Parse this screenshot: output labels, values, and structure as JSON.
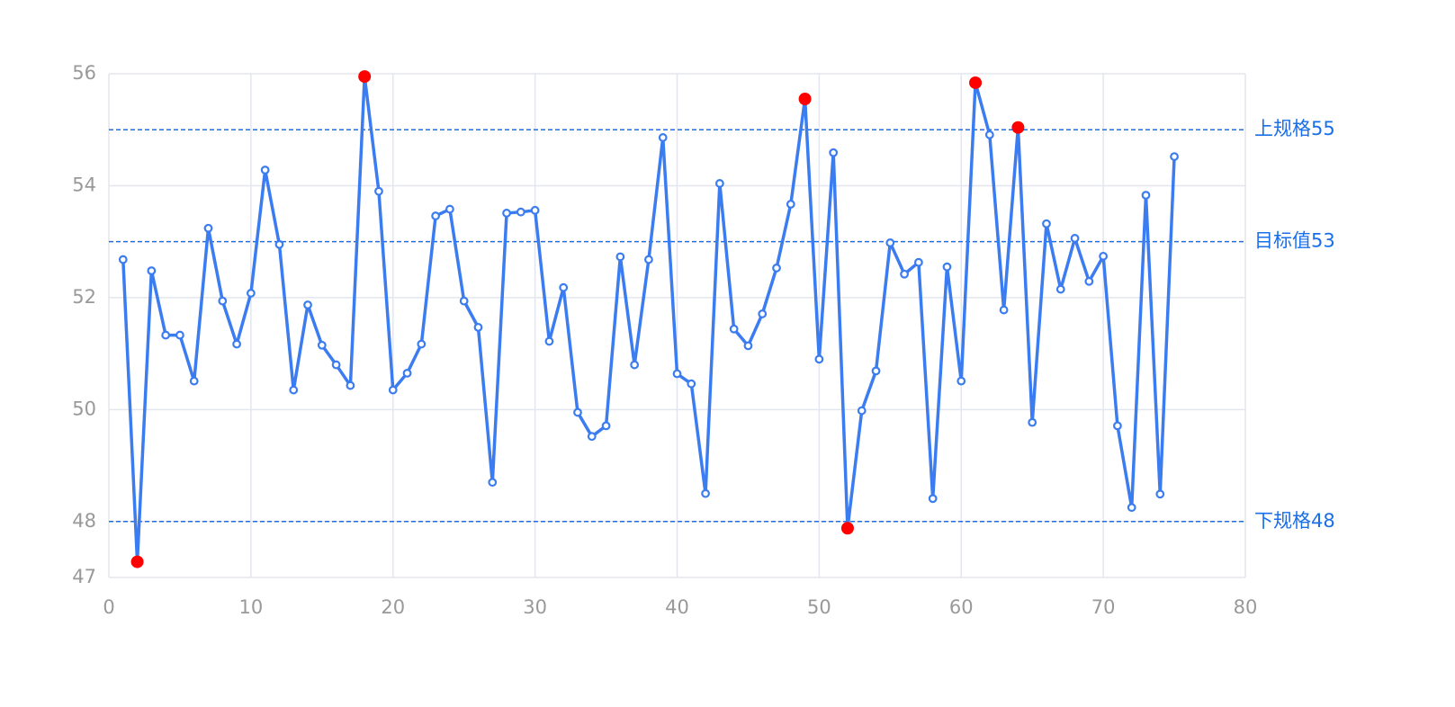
{
  "chart_data": {
    "type": "line",
    "x": [
      1,
      2,
      3,
      4,
      5,
      6,
      7,
      8,
      9,
      10,
      11,
      12,
      13,
      14,
      15,
      16,
      17,
      18,
      19,
      20,
      21,
      22,
      23,
      24,
      25,
      26,
      27,
      28,
      29,
      30,
      31,
      32,
      33,
      34,
      35,
      36,
      37,
      38,
      39,
      40,
      41,
      42,
      43,
      44,
      45,
      46,
      47,
      48,
      49,
      50,
      51,
      52,
      53,
      54,
      55,
      56,
      57,
      58,
      59,
      60,
      61,
      62,
      63,
      64,
      65,
      66,
      67,
      68,
      69,
      70,
      71,
      72,
      73,
      74,
      75
    ],
    "series": [
      {
        "color": "#3b7cf0",
        "values": [
          52.68,
          47.28,
          52.48,
          51.33,
          51.33,
          50.51,
          53.24,
          51.94,
          51.17,
          52.08,
          54.28,
          52.95,
          50.35,
          51.87,
          51.15,
          50.8,
          50.43,
          55.95,
          53.9,
          50.35,
          50.65,
          51.17,
          53.46,
          53.58,
          51.94,
          51.47,
          48.7,
          53.51,
          53.53,
          53.56,
          51.22,
          52.18,
          49.95,
          49.52,
          49.71,
          52.73,
          50.8,
          52.68,
          54.86,
          50.64,
          50.46,
          48.5,
          54.04,
          51.44,
          51.14,
          51.71,
          52.53,
          53.67,
          55.55,
          50.9,
          54.59,
          47.88,
          49.98,
          50.69,
          52.98,
          52.42,
          52.63,
          48.41,
          52.55,
          50.51,
          55.84,
          54.91,
          51.78,
          55.04,
          49.77,
          53.32,
          52.15,
          53.06,
          52.29,
          52.74,
          49.71,
          48.25,
          53.83,
          48.49,
          54.52
        ]
      }
    ],
    "xlim": [
      0,
      80
    ],
    "xticks": [
      0,
      10,
      20,
      30,
      40,
      50,
      60,
      70,
      80
    ],
    "ylim": [
      47,
      56
    ],
    "yticks": [
      47,
      48,
      50,
      52,
      54,
      56
    ],
    "grid": true,
    "reference_lines": [
      {
        "value": 55,
        "label": "上规格55"
      },
      {
        "value": 53,
        "label": "目标值53"
      },
      {
        "value": 48,
        "label": "下规格48"
      }
    ],
    "reference_color": "#1a6fe8",
    "highlight_color": "#ff0000"
  }
}
